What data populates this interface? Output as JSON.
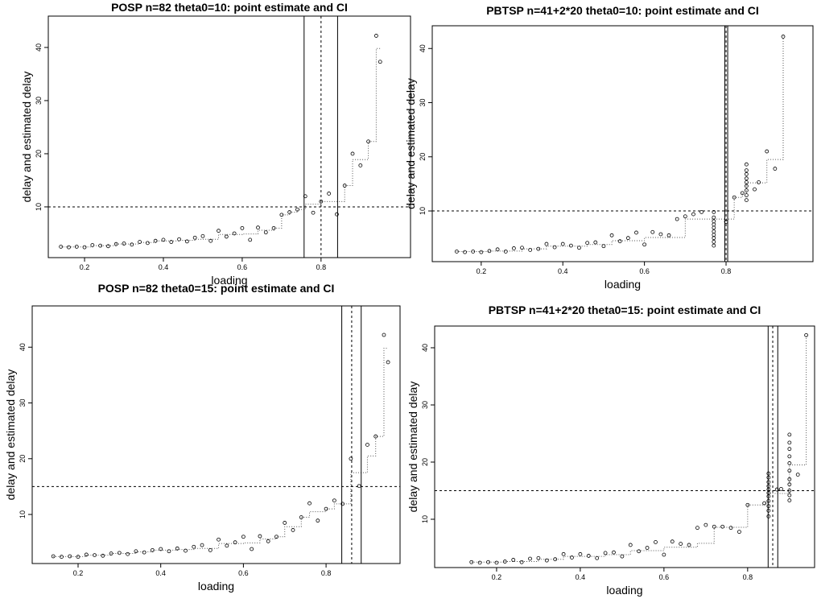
{
  "chart_data": [
    {
      "type": "scatter",
      "title": "POSP n=82 theta0=10: point estimate and CI",
      "xlabel": "loading",
      "ylabel": "delay and estimated delay",
      "x": [
        0.14,
        0.16,
        0.18,
        0.2,
        0.22,
        0.24,
        0.26,
        0.28,
        0.3,
        0.32,
        0.34,
        0.36,
        0.38,
        0.4,
        0.42,
        0.44,
        0.46,
        0.48,
        0.5,
        0.52,
        0.54,
        0.56,
        0.58,
        0.6,
        0.62,
        0.64,
        0.66,
        0.68,
        0.7,
        0.72,
        0.74,
        0.76,
        0.78,
        0.8,
        0.82,
        0.84,
        0.86,
        0.88,
        0.9,
        0.92,
        0.94,
        0.95
      ],
      "values": [
        2.5,
        2.4,
        2.5,
        2.4,
        2.8,
        2.7,
        2.6,
        3.0,
        3.1,
        2.9,
        3.4,
        3.2,
        3.6,
        3.8,
        3.4,
        3.9,
        3.5,
        4.2,
        4.5,
        3.6,
        5.5,
        4.4,
        5.0,
        6.0,
        3.8,
        6.1,
        5.2,
        6.0,
        8.5,
        9.0,
        9.5,
        12.0,
        8.9,
        11.0,
        12.5,
        8.6,
        14.0,
        20.0,
        17.8,
        22.3,
        42.2,
        37.3
      ],
      "fit_x": [
        0.14,
        0.16,
        0.18,
        0.2,
        0.22,
        0.24,
        0.26,
        0.28,
        0.3,
        0.32,
        0.34,
        0.36,
        0.38,
        0.4,
        0.42,
        0.44,
        0.46,
        0.48,
        0.5,
        0.52,
        0.54,
        0.56,
        0.58,
        0.6,
        0.62,
        0.64,
        0.66,
        0.68,
        0.7,
        0.72,
        0.74,
        0.76,
        0.78,
        0.8,
        0.82,
        0.84,
        0.86,
        0.88,
        0.9,
        0.92,
        0.94,
        0.95
      ],
      "fit": [
        2.45,
        2.45,
        2.45,
        2.45,
        2.7,
        2.7,
        2.7,
        3.0,
        3.0,
        3.0,
        3.3,
        3.3,
        3.6,
        3.6,
        3.6,
        3.7,
        3.7,
        3.9,
        3.9,
        3.9,
        4.8,
        4.8,
        4.8,
        4.9,
        4.9,
        5.6,
        5.6,
        6.0,
        8.5,
        9.0,
        9.5,
        10.5,
        10.5,
        11.0,
        11.0,
        11.0,
        14.0,
        18.9,
        18.9,
        22.3,
        39.8,
        39.8
      ],
      "hline": 10,
      "ci": [
        0.757,
        0.8,
        0.842
      ],
      "xlim": [
        0.108,
        1.027
      ],
      "ylim": [
        0.45,
        45.9
      ],
      "xticks": [
        0.2,
        0.4,
        0.6,
        0.8
      ],
      "yticks": [
        10,
        20,
        30,
        40
      ]
    },
    {
      "type": "scatter",
      "title": "PBTSP n=41+2*20 theta0=10: point estimate and CI",
      "xlabel": "loading",
      "ylabel": "delay and estimated delay",
      "x": [
        0.14,
        0.16,
        0.18,
        0.2,
        0.22,
        0.24,
        0.26,
        0.28,
        0.3,
        0.32,
        0.34,
        0.36,
        0.38,
        0.4,
        0.42,
        0.44,
        0.46,
        0.48,
        0.5,
        0.52,
        0.54,
        0.56,
        0.58,
        0.6,
        0.62,
        0.64,
        0.66,
        0.68,
        0.7,
        0.72,
        0.74,
        0.77,
        0.77,
        0.77,
        0.77,
        0.77,
        0.77,
        0.77,
        0.77,
        0.77,
        0.77,
        0.8,
        0.82,
        0.84,
        0.85,
        0.85,
        0.85,
        0.85,
        0.85,
        0.85,
        0.85,
        0.85,
        0.85,
        0.87,
        0.88,
        0.9,
        0.92,
        0.94
      ],
      "values": [
        2.5,
        2.4,
        2.5,
        2.4,
        2.6,
        2.9,
        2.5,
        3.1,
        3.2,
        2.8,
        3.0,
        3.9,
        3.3,
        3.9,
        3.6,
        3.2,
        4.1,
        4.2,
        3.5,
        5.5,
        4.4,
        5.0,
        6.0,
        3.8,
        6.1,
        5.7,
        5.5,
        8.5,
        9.0,
        9.4,
        9.8,
        3.6,
        4.3,
        5.0,
        5.6,
        6.2,
        6.9,
        7.5,
        8.1,
        8.8,
        9.8,
        8.0,
        12.5,
        13.3,
        12.0,
        12.9,
        13.8,
        14.6,
        15.3,
        16.0,
        16.8,
        17.5,
        18.6,
        14.0,
        15.3,
        21.0,
        17.8,
        42.2
      ],
      "fit_x": [
        0.14,
        0.22,
        0.3,
        0.36,
        0.46,
        0.52,
        0.6,
        0.7,
        0.77,
        0.82,
        0.84,
        0.85,
        0.9,
        0.94
      ],
      "fit": [
        2.5,
        2.6,
        3.0,
        3.5,
        3.8,
        4.5,
        5.1,
        8.5,
        8.5,
        12.5,
        13.3,
        15.2,
        19.5,
        42.2
      ],
      "hline": 10,
      "ci": [
        0.797,
        0.8,
        0.804
      ],
      "xlim": [
        0.08,
        1.013
      ],
      "ylim": [
        0.64,
        44.2
      ],
      "xticks": [
        0.2,
        0.4,
        0.6,
        0.8
      ],
      "yticks": [
        10,
        20,
        30,
        40
      ]
    },
    {
      "type": "scatter",
      "title": "POSP n=82 theta0=15: point estimate and CI",
      "xlabel": "loading",
      "ylabel": "delay and estimated delay",
      "x": [
        0.14,
        0.16,
        0.18,
        0.2,
        0.22,
        0.24,
        0.26,
        0.28,
        0.3,
        0.32,
        0.34,
        0.36,
        0.38,
        0.4,
        0.42,
        0.44,
        0.46,
        0.48,
        0.5,
        0.52,
        0.54,
        0.56,
        0.58,
        0.6,
        0.62,
        0.64,
        0.66,
        0.68,
        0.7,
        0.72,
        0.74,
        0.76,
        0.78,
        0.8,
        0.82,
        0.84,
        0.86,
        0.88,
        0.9,
        0.92,
        0.94,
        0.95
      ],
      "values": [
        2.5,
        2.4,
        2.5,
        2.4,
        2.8,
        2.7,
        2.6,
        3.0,
        3.1,
        2.9,
        3.4,
        3.2,
        3.6,
        3.8,
        3.4,
        3.9,
        3.5,
        4.2,
        4.5,
        3.6,
        5.5,
        4.4,
        5.0,
        6.0,
        3.8,
        6.1,
        5.2,
        6.0,
        8.5,
        7.2,
        9.5,
        12.0,
        8.9,
        11.0,
        12.5,
        11.9,
        20.0,
        15.1,
        22.5,
        24.0,
        42.2,
        37.3
      ],
      "fit_x": [
        0.14,
        0.16,
        0.18,
        0.2,
        0.22,
        0.24,
        0.26,
        0.28,
        0.3,
        0.32,
        0.34,
        0.36,
        0.38,
        0.4,
        0.42,
        0.44,
        0.46,
        0.48,
        0.5,
        0.52,
        0.54,
        0.56,
        0.58,
        0.6,
        0.62,
        0.64,
        0.66,
        0.68,
        0.7,
        0.72,
        0.74,
        0.76,
        0.78,
        0.8,
        0.82,
        0.84,
        0.86,
        0.88,
        0.9,
        0.92,
        0.94,
        0.95
      ],
      "fit": [
        2.45,
        2.45,
        2.45,
        2.45,
        2.7,
        2.7,
        2.7,
        3.0,
        3.0,
        3.0,
        3.3,
        3.3,
        3.6,
        3.6,
        3.6,
        3.7,
        3.7,
        3.9,
        3.9,
        3.9,
        4.8,
        4.8,
        4.8,
        4.9,
        4.9,
        5.6,
        5.6,
        6.0,
        7.8,
        7.8,
        9.5,
        10.5,
        10.5,
        11.0,
        11.9,
        11.9,
        17.5,
        17.5,
        20.5,
        24.0,
        39.8,
        39.8
      ],
      "hline": 15,
      "ci": [
        0.838,
        0.862,
        0.885
      ],
      "xlim": [
        0.089,
        0.979
      ],
      "ylim": [
        1.2,
        47.4
      ],
      "xticks": [
        0.2,
        0.4,
        0.6,
        0.8
      ],
      "yticks": [
        10,
        20,
        30,
        40
      ]
    },
    {
      "type": "scatter",
      "title": "PBTSP n=41+2*20 theta0=15: point estimate and CI",
      "xlabel": "loading",
      "ylabel": "delay and estimated delay",
      "x": [
        0.14,
        0.16,
        0.18,
        0.2,
        0.22,
        0.24,
        0.26,
        0.28,
        0.3,
        0.32,
        0.34,
        0.36,
        0.38,
        0.4,
        0.42,
        0.44,
        0.46,
        0.48,
        0.5,
        0.52,
        0.54,
        0.56,
        0.58,
        0.6,
        0.62,
        0.64,
        0.66,
        0.68,
        0.7,
        0.72,
        0.74,
        0.76,
        0.78,
        0.8,
        0.84,
        0.85,
        0.85,
        0.85,
        0.85,
        0.85,
        0.85,
        0.85,
        0.85,
        0.85,
        0.85,
        0.85,
        0.87,
        0.88,
        0.9,
        0.9,
        0.9,
        0.9,
        0.9,
        0.9,
        0.9,
        0.9,
        0.9,
        0.9,
        0.9,
        0.92,
        0.94
      ],
      "values": [
        2.5,
        2.4,
        2.5,
        2.4,
        2.6,
        2.9,
        2.5,
        3.1,
        3.2,
        2.8,
        3.0,
        3.9,
        3.3,
        3.9,
        3.6,
        3.2,
        4.1,
        4.2,
        3.5,
        5.5,
        4.4,
        5.0,
        6.0,
        3.8,
        6.1,
        5.7,
        5.5,
        8.5,
        9.0,
        8.7,
        8.7,
        8.5,
        7.8,
        12.5,
        12.8,
        10.5,
        11.5,
        12.3,
        13.2,
        14.0,
        14.6,
        15.2,
        15.8,
        16.5,
        17.3,
        18.0,
        15.2,
        15.3,
        13.3,
        14.2,
        15.0,
        16.1,
        17.0,
        18.5,
        19.8,
        21.0,
        22.3,
        23.4,
        24.8,
        17.8,
        42.2
      ],
      "fit_x": [
        0.14,
        0.22,
        0.3,
        0.36,
        0.46,
        0.52,
        0.6,
        0.68,
        0.72,
        0.8,
        0.84,
        0.85,
        0.9,
        0.94
      ],
      "fit": [
        2.5,
        2.6,
        3.0,
        3.5,
        3.8,
        4.5,
        5.1,
        5.8,
        8.6,
        12.5,
        12.8,
        14.5,
        19.5,
        42.2
      ],
      "hline": 15,
      "ci": [
        0.849,
        0.86,
        0.872
      ],
      "xlim": [
        0.052,
        0.96
      ],
      "ylim": [
        1.55,
        43.8
      ],
      "xticks": [
        0.2,
        0.4,
        0.6,
        0.8
      ],
      "yticks": [
        10,
        20,
        30,
        40
      ]
    }
  ]
}
